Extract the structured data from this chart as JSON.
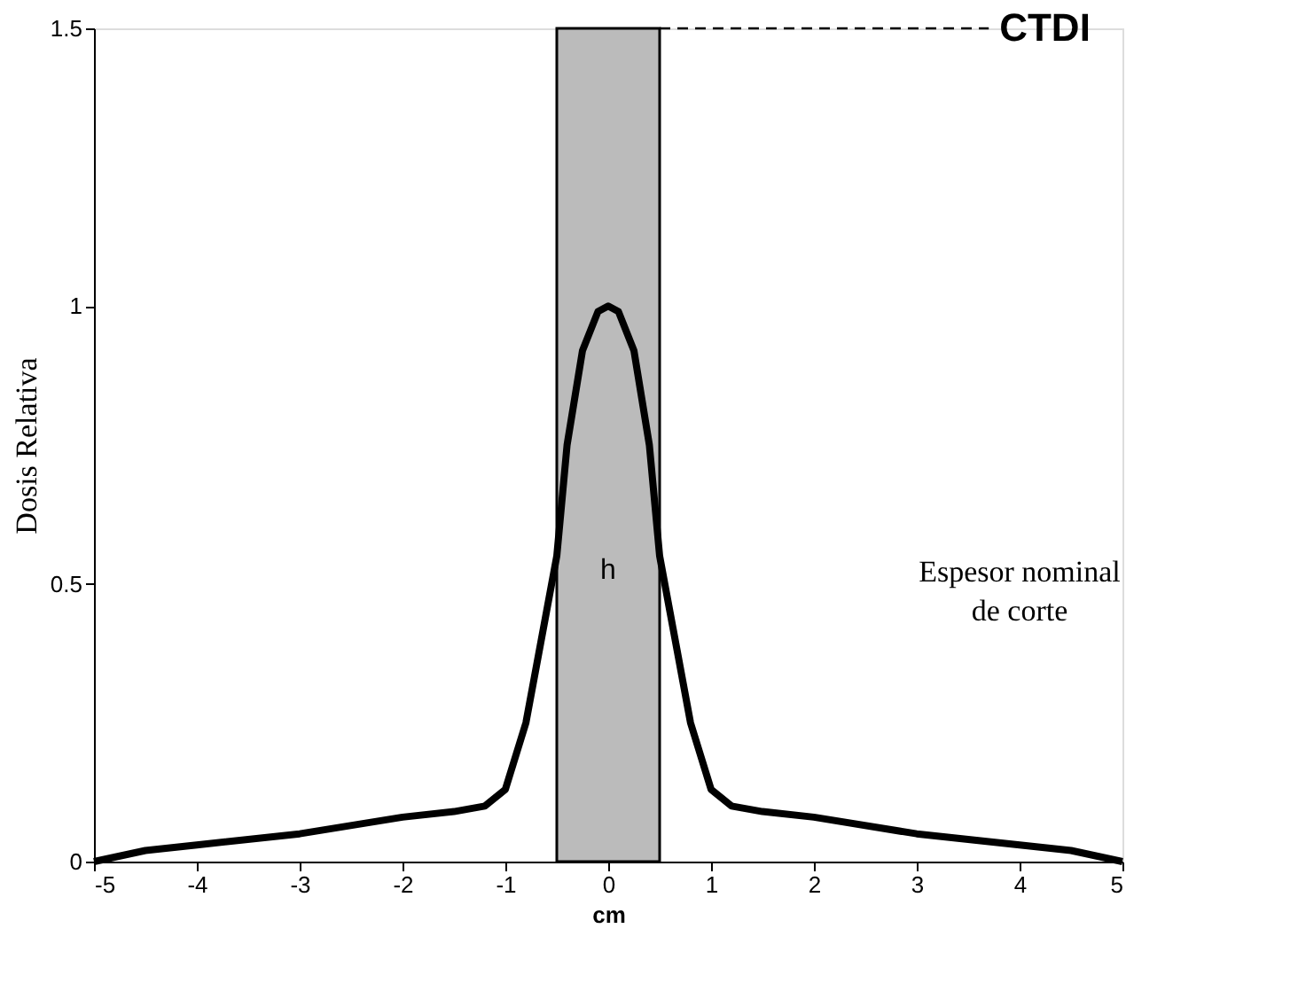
{
  "chart_data": {
    "type": "line",
    "xlabel": "cm",
    "ylabel": "Dosis Relativa",
    "x": [
      -5,
      -4.5,
      -4,
      -3,
      -2,
      -1.5,
      -1.2,
      -1,
      -0.8,
      -0.6,
      -0.5,
      -0.4,
      -0.25,
      -0.1,
      0,
      0.1,
      0.25,
      0.4,
      0.5,
      0.6,
      0.8,
      1,
      1.2,
      1.5,
      2,
      3,
      4,
      4.5,
      5
    ],
    "series": [
      {
        "color": "#000000",
        "values": [
          0,
          0.02,
          0.03,
          0.05,
          0.08,
          0.09,
          0.1,
          0.13,
          0.25,
          0.45,
          0.55,
          0.75,
          0.92,
          0.99,
          1.0,
          0.99,
          0.92,
          0.75,
          0.55,
          0.45,
          0.25,
          0.13,
          0.1,
          0.09,
          0.08,
          0.05,
          0.03,
          0.02,
          0
        ]
      }
    ],
    "xlim": [
      -5,
      5
    ],
    "ylim": [
      0,
      1.5
    ],
    "xticks": [
      -5,
      -4,
      -3,
      -2,
      -1,
      0,
      1,
      2,
      3,
      4,
      5
    ],
    "yticks": [
      0,
      0.5,
      1,
      1.5
    ],
    "bands": [
      {
        "axis": "x",
        "from": -0.5,
        "to": 0.5,
        "label": "h",
        "color": "#bbbbbb"
      }
    ],
    "ref_lines": [
      {
        "axis": "y",
        "value": 1.5,
        "label": "CTDI",
        "line_style": "dashed",
        "color": "#000000"
      }
    ],
    "annotations": [
      "Espesor nominal de corte"
    ],
    "grid": false,
    "marker": "none",
    "line_style": "solid"
  }
}
